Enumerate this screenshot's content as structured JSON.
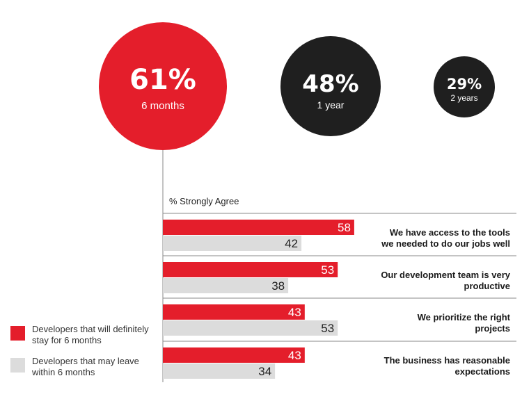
{
  "chart_data": {
    "type": "bar",
    "orientation": "horizontal",
    "axis_label": "% Strongly Agree",
    "colors": {
      "stay": "#e41e2b",
      "leave": "#dcdcdc",
      "dark": "#1f1f1f"
    },
    "retention_circles": [
      {
        "value": 61,
        "display": "61%",
        "label": "6 months",
        "color": "#e41e2b"
      },
      {
        "value": 48,
        "display": "48%",
        "label": "1 year",
        "color": "#1f1f1f"
      },
      {
        "value": 29,
        "display": "29%",
        "label": "2 years",
        "color": "#1f1f1f"
      }
    ],
    "categories": [
      [
        "We have access to the tools",
        "we needed to do our jobs well"
      ],
      [
        "Our development team is very",
        "productive"
      ],
      [
        "We prioritize the right",
        "projects"
      ],
      [
        "The business has reasonable",
        "expectations"
      ]
    ],
    "series": [
      {
        "name": "Developers that will definitely stay for 6 months",
        "legend_lines": [
          "Developers that will definitely",
          "stay for 6 months"
        ],
        "key": "stay",
        "values": [
          58,
          53,
          43,
          43
        ]
      },
      {
        "name": "Developers that may leave within 6 months",
        "legend_lines": [
          "Developers that may leave",
          "within 6 months"
        ],
        "key": "leave",
        "values": [
          42,
          38,
          53,
          34
        ]
      }
    ]
  }
}
